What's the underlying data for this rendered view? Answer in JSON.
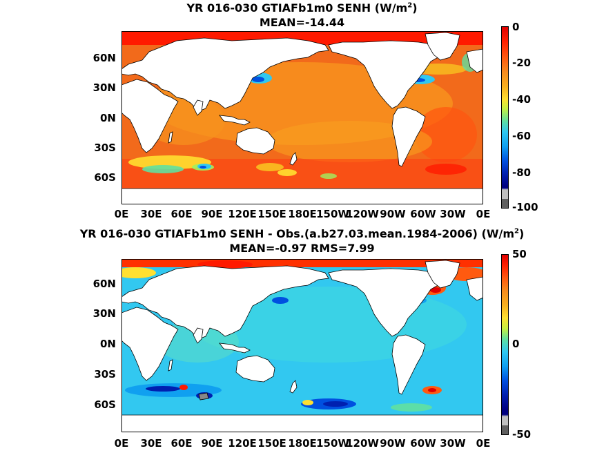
{
  "panels": [
    {
      "title_line1_pre": "YR 016-030 GTIAFb1m0  SENH (W/m",
      "title_line1_sup": "2",
      "title_line1_post": ")",
      "title_line2": "MEAN=-14.44",
      "lat_ticks": [
        "60N",
        "30N",
        "0N",
        "30S",
        "60S"
      ],
      "lon_ticks": [
        "0E",
        "30E",
        "60E",
        "90E",
        "120E",
        "150E",
        "180E",
        "150W",
        "120W",
        "90W",
        "60W",
        "30W",
        "0E"
      ],
      "colorbar_ticks": [
        "0",
        "-20",
        "-40",
        "-60",
        "-80",
        "-100"
      ],
      "colorbar_range": [
        -100,
        0
      ],
      "ocean_color": "#f26a1b"
    },
    {
      "title_line1_pre": "YR 016-030 GTIAFb1m0 SENH - Obs.(a.b27.03.mean.1984-2006) (W/m",
      "title_line1_sup": "2",
      "title_line1_post": ")",
      "title_line2": "MEAN=-0.97 RMS=7.99",
      "lat_ticks": [
        "60N",
        "30N",
        "0N",
        "30S",
        "60S"
      ],
      "lon_ticks": [
        "0E",
        "30E",
        "60E",
        "90E",
        "120E",
        "150E",
        "180E",
        "150W",
        "120W",
        "90W",
        "60W",
        "30W",
        "0E"
      ],
      "colorbar_ticks": [
        "50",
        "0",
        "-50"
      ],
      "colorbar_range": [
        -50,
        50
      ],
      "ocean_color": "#32c8f0"
    }
  ]
}
